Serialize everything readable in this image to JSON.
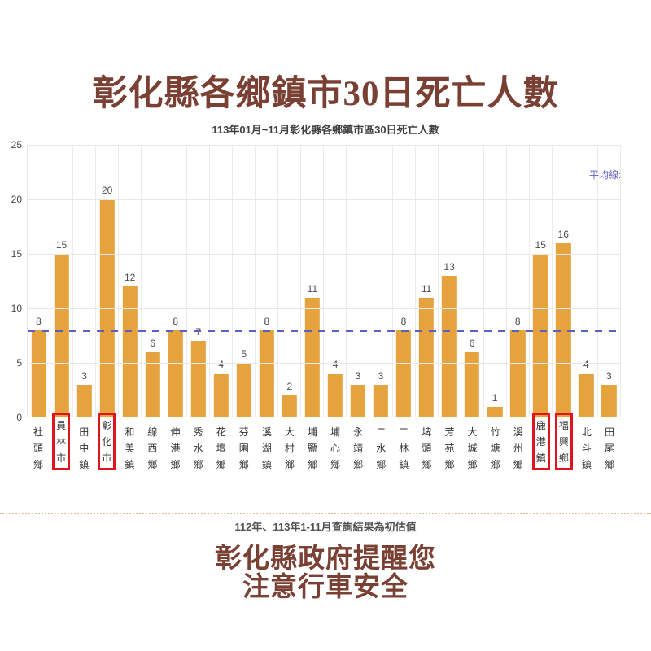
{
  "page": {
    "title": "彰化縣各鄉鎮市30日死亡人數",
    "footnote": "112年、113年1-11月查詢結果為初估值",
    "footer_line1": "彰化縣政府提醒您",
    "footer_line2": "注意行車安全"
  },
  "chart_data": {
    "type": "bar",
    "title": "113年01月~11月彰化縣各鄉鎮市區30日死亡人數",
    "categories": [
      "社頭鄉",
      "員林市",
      "田中鎮",
      "彰化市",
      "和美鎮",
      "線西鄉",
      "伸港鄉",
      "秀水鄉",
      "花壇鄉",
      "芬園鄉",
      "溪湖鎮",
      "大村鄉",
      "埔鹽鄉",
      "埔心鄉",
      "永靖鄉",
      "二水鄉",
      "二林鎮",
      "埤頭鄉",
      "芳苑鄉",
      "大城鄉",
      "竹塘鄉",
      "溪州鄉",
      "鹿港鎮",
      "福興鄉",
      "北斗鎮",
      "田尾鄉"
    ],
    "values": [
      8,
      15,
      3,
      20,
      12,
      6,
      8,
      7,
      4,
      5,
      8,
      2,
      11,
      4,
      3,
      3,
      8,
      11,
      13,
      6,
      1,
      8,
      15,
      16,
      4,
      3
    ],
    "highlighted_categories": [
      "員林市",
      "彰化市",
      "鹿港鎮",
      "福興鄉"
    ],
    "average_line": {
      "label": "平均線:",
      "value": 7.85
    },
    "ylabel": "",
    "xlabel": "",
    "ylim": [
      0,
      25
    ],
    "yticks": [
      0,
      5,
      10,
      15,
      20,
      25
    ],
    "grid": true,
    "legend": "none",
    "colors": {
      "bar": "#E6A23C",
      "average_line": "#5A60C0",
      "highlight_box": "#E0141E",
      "title_text": "#7A4033",
      "separator": "#DDBB93"
    }
  }
}
